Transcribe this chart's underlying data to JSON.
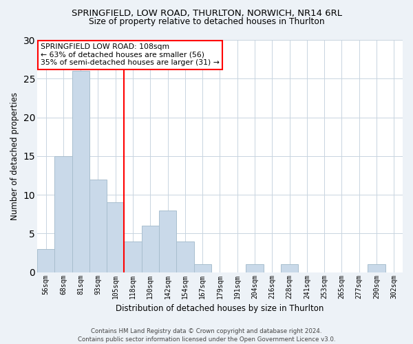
{
  "title1": "SPRINGFIELD, LOW ROAD, THURLTON, NORWICH, NR14 6RL",
  "title2": "Size of property relative to detached houses in Thurlton",
  "xlabel": "Distribution of detached houses by size in Thurlton",
  "ylabel": "Number of detached properties",
  "categories": [
    "56sqm",
    "68sqm",
    "81sqm",
    "93sqm",
    "105sqm",
    "118sqm",
    "130sqm",
    "142sqm",
    "154sqm",
    "167sqm",
    "179sqm",
    "191sqm",
    "204sqm",
    "216sqm",
    "228sqm",
    "241sqm",
    "253sqm",
    "265sqm",
    "277sqm",
    "290sqm",
    "302sqm"
  ],
  "values": [
    3,
    15,
    26,
    12,
    9,
    4,
    6,
    8,
    4,
    1,
    0,
    0,
    1,
    0,
    1,
    0,
    0,
    0,
    0,
    1,
    0
  ],
  "bar_color": "#c9d9e9",
  "bar_edge_color": "#a8bece",
  "vline_index": 4.5,
  "annotation_text": "SPRINGFIELD LOW ROAD: 108sqm\n← 63% of detached houses are smaller (56)\n35% of semi-detached houses are larger (31) →",
  "annotation_box_color": "white",
  "annotation_box_edge_color": "red",
  "vline_color": "red",
  "ylim": [
    0,
    30
  ],
  "yticks": [
    0,
    5,
    10,
    15,
    20,
    25,
    30
  ],
  "footer": "Contains HM Land Registry data © Crown copyright and database right 2024.\nContains public sector information licensed under the Open Government Licence v3.0.",
  "bg_color": "#edf2f7",
  "plot_bg_color": "#ffffff",
  "grid_color": "#c8d4e0"
}
